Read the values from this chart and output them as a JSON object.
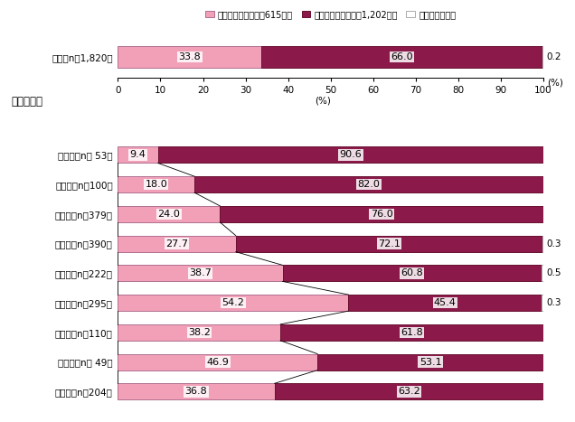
{
  "legend_labels": [
    "聆いたことがある（615人）",
    "聆いたことがない（1,202人）",
    "無回答（３人）"
  ],
  "colors": [
    "#f2a0b8",
    "#8b1a4a",
    "#ffffff"
  ],
  "color_borders": [
    "#b07090",
    "#6a1030",
    "#aaaaaa"
  ],
  "summary_label": "総数（n＝1,820）",
  "summary_values": [
    33.8,
    66.0,
    0.2
  ],
  "summary_outside": "0.2",
  "region_labels": [
    "北海道（n＝ 53）",
    "東　北（n＝100）",
    "東　京（n＝379）",
    "関　東（n＝390）",
    "中　部（n＝222）",
    "近　畟（n＝295）",
    "中　国（n＝110）",
    "四　国（n＝ 49）",
    "九　州（n＝204）"
  ],
  "region_values": [
    [
      9.4,
      90.6,
      0.0
    ],
    [
      18.0,
      82.0,
      0.0
    ],
    [
      24.0,
      76.0,
      0.0
    ],
    [
      27.7,
      72.1,
      0.3
    ],
    [
      38.7,
      60.8,
      0.5
    ],
    [
      54.2,
      45.4,
      0.3
    ],
    [
      38.2,
      61.8,
      0.0
    ],
    [
      46.9,
      53.1,
      0.0
    ],
    [
      36.8,
      63.2,
      0.0
    ]
  ],
  "outside_labels": {
    "3": 0.3,
    "4": 0.5,
    "5": 0.3
  },
  "xlim": [
    0,
    100
  ],
  "xticks": [
    0,
    10,
    20,
    30,
    40,
    50,
    60,
    70,
    80,
    90,
    100
  ],
  "xlabel": "(%)",
  "region_section_label": "【地域別】"
}
